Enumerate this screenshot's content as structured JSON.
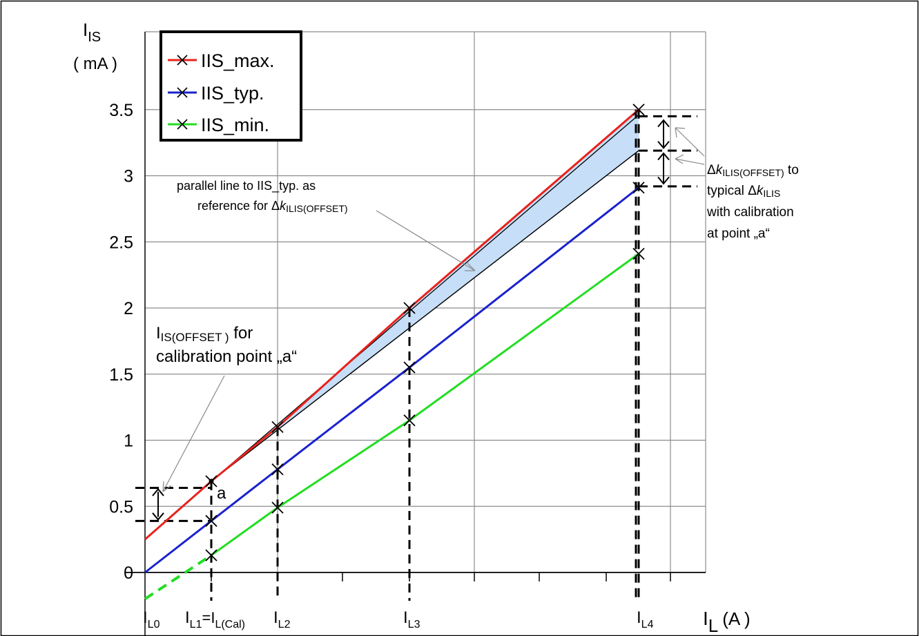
{
  "chart_data": {
    "type": "line",
    "ylabel": {
      "main": "I",
      "sub": "IS",
      "unit": "( mA  )"
    },
    "xlabel": {
      "main": "I",
      "sub": "L",
      "unit": "(A )"
    },
    "ylim": [
      0,
      3.5
    ],
    "y_ticks": [
      "0",
      "0.5",
      "1",
      "1.5",
      "2",
      "2.5",
      "3",
      "3.5"
    ],
    "y_tick_values": [
      0,
      0.5,
      1,
      1.5,
      2,
      2.5,
      3,
      3.5
    ],
    "x_points": [
      {
        "key": "L0",
        "main": "I",
        "sub": "L0",
        "x": 0
      },
      {
        "key": "L1",
        "main": "I",
        "sub": "L1",
        "mid": "=I",
        "sub2": "L(Cal)",
        "x": 0.5
      },
      {
        "key": "L2",
        "main": "I",
        "sub": "L2",
        "x": 1
      },
      {
        "key": "L3",
        "main": "I",
        "sub": "L3",
        "x": 2
      },
      {
        "key": "L4",
        "main": "I",
        "sub": "L4",
        "x": 3.7
      }
    ],
    "grid": true,
    "legend": {
      "placement": "top-left",
      "entries": [
        {
          "name": "IIS_max.",
          "color": "#e8221b"
        },
        {
          "name": "IIS_typ.",
          "color": "#1a22cc"
        },
        {
          "name": "IIS_min.",
          "color": "#22dd22"
        }
      ]
    },
    "series": [
      {
        "name": "IIS_max.",
        "color": "#e8221b",
        "x": [
          0,
          0.5,
          1,
          2,
          3.7
        ],
        "values": [
          0.25,
          0.69,
          1.1,
          2.0,
          3.5
        ],
        "markers": [
          false,
          true,
          true,
          true,
          true
        ]
      },
      {
        "name": "IIS_typ.",
        "color": "#1a22cc",
        "x": [
          0,
          0.5,
          1,
          2,
          3.7
        ],
        "values": [
          0,
          0.39,
          0.78,
          1.55,
          2.91
        ],
        "markers": [
          false,
          true,
          true,
          true,
          true
        ]
      },
      {
        "name": "IIS_min.",
        "color": "#22dd22",
        "x": [
          0.5,
          1,
          2,
          3.7
        ],
        "values": [
          0.13,
          0.49,
          1.15,
          2.41
        ],
        "markers": [
          true,
          true,
          true,
          true
        ],
        "extrapolated": {
          "x": [
            0,
            0.5
          ],
          "values": [
            -0.2,
            0.13
          ]
        }
      }
    ],
    "reference_line": {
      "from": [
        0.5,
        0.69
      ],
      "to": [
        3.7,
        3.19
      ],
      "description_fill": "#c6def7"
    },
    "annotations": {
      "point_a": "a",
      "parallel": {
        "line1": "parallel line to IIS_typ. as",
        "line2_prefix": "reference for Δ",
        "k": "k",
        "sub": "ILIS(OFFSET)"
      },
      "offset": {
        "main": "I",
        "sub": "IS(OFFSET )",
        "line1_suffix": " for",
        "line2": "calibration point „a“"
      },
      "delta": {
        "prefix": "Δ",
        "k": "k",
        "sub": "ILIS(OFFSET)",
        "suffix": " to",
        "line2_prefix": "typical Δ",
        "line2_sub": "ILIS",
        "line3": "with calibration",
        "line4": "at point „a“"
      }
    }
  }
}
